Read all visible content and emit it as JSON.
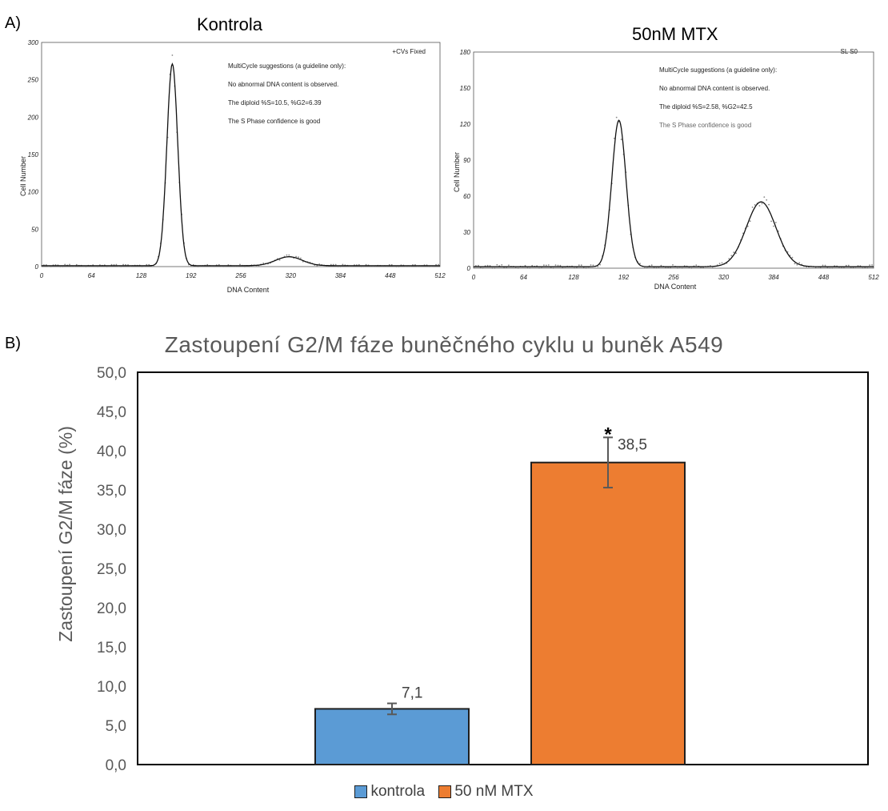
{
  "panels": {
    "a_label": "A)",
    "b_label": "B)"
  },
  "histograms": [
    {
      "title": "Kontrola",
      "corner_note": "+CVs Fixed",
      "notes": [
        "MultiCycle suggestions (a guideline only):",
        "No abnormal DNA content is observed.",
        "The diploid %S=10.5, %G2=6.39",
        "The S Phase confidence is good"
      ],
      "xlabel": "DNA Content",
      "ylabel": "Cell Number",
      "xticks": [
        "0",
        "64",
        "128",
        "192",
        "256",
        "320",
        "384",
        "448",
        "512"
      ],
      "yticks": [
        "0",
        "50",
        "100",
        "150",
        "200",
        "250",
        "300"
      ],
      "ymax": 300,
      "peaks": [
        {
          "center": 168,
          "height": 270,
          "sigma": 7
        },
        {
          "center": 318,
          "height": 12,
          "sigma": 17
        }
      ]
    },
    {
      "title": "50nM MTX",
      "corner_note": "SL S0",
      "notes": [
        "MultiCycle suggestions (a guideline only):",
        "No abnormal DNA content is observed.",
        "The diploid %S=2.58, %G2=42.5",
        "The S Phase confidence is good"
      ],
      "xlabel": "DNA Content",
      "ylabel": "Cell Number",
      "xticks": [
        "0",
        "64",
        "128",
        "192",
        "256",
        "320",
        "384",
        "448",
        "512"
      ],
      "yticks": [
        "0",
        "30",
        "60",
        "90",
        "120",
        "150",
        "180"
      ],
      "ymax": 180,
      "peaks": [
        {
          "center": 186,
          "height": 122,
          "sigma": 9
        },
        {
          "center": 368,
          "height": 54,
          "sigma": 19
        }
      ]
    }
  ],
  "chart_data": {
    "type": "bar",
    "title": "Zastoupení G2/M fáze buněčného cyklu u buněk A549",
    "ylabel": "Zastoupení G2/M fáze  (%)",
    "ylim": [
      0,
      50
    ],
    "yticks": [
      "0,0",
      "5,0",
      "10,0",
      "15,0",
      "20,0",
      "25,0",
      "30,0",
      "35,0",
      "40,0",
      "45,0",
      "50,0"
    ],
    "series": [
      {
        "name": "kontrola",
        "value": 7.1,
        "label": "7,1",
        "error": 0.7,
        "color": "#5b9bd5"
      },
      {
        "name": "50 nM MTX",
        "value": 38.5,
        "label": "38,5",
        "error": 3.2,
        "color": "#ed7d31",
        "significance": "*"
      }
    ],
    "legend_position": "bottom",
    "grid": false
  }
}
